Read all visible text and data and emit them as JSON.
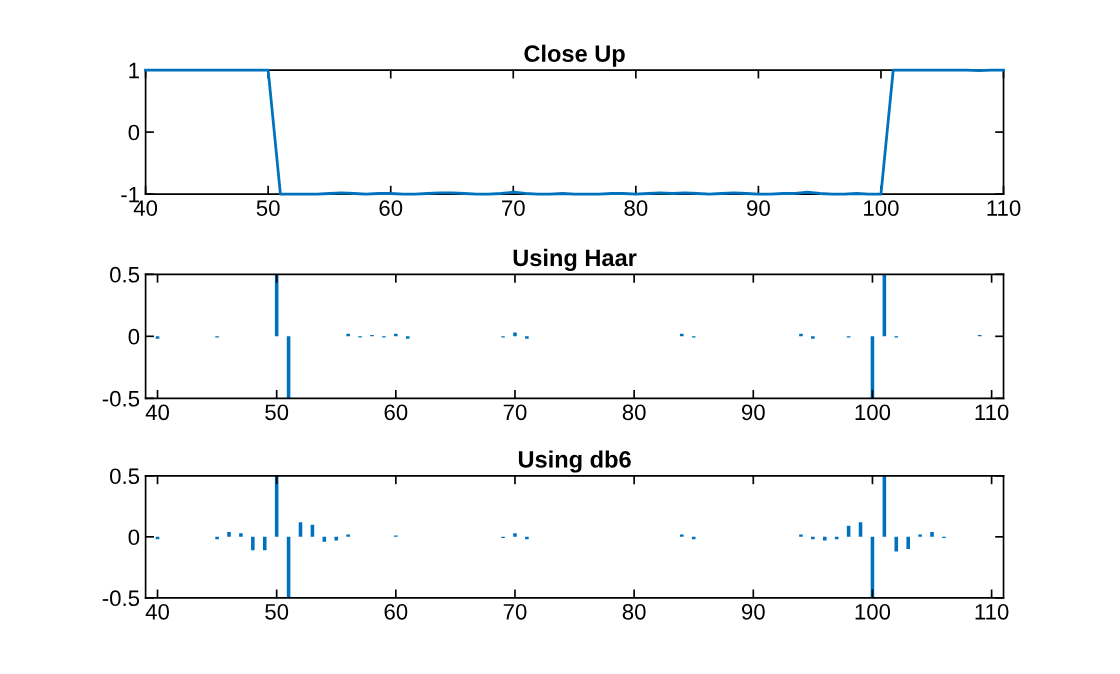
{
  "chart_data": [
    {
      "type": "line",
      "title": "Close Up",
      "x": [
        40,
        41,
        42,
        43,
        44,
        45,
        46,
        47,
        48,
        49,
        50,
        51,
        52,
        53,
        54,
        55,
        56,
        57,
        58,
        59,
        60,
        61,
        62,
        63,
        64,
        65,
        66,
        67,
        68,
        69,
        70,
        71,
        72,
        73,
        74,
        75,
        76,
        77,
        78,
        79,
        80,
        81,
        82,
        83,
        84,
        85,
        86,
        87,
        88,
        89,
        90,
        91,
        92,
        93,
        94,
        95,
        96,
        97,
        98,
        99,
        100,
        101,
        102,
        103,
        104,
        105,
        106,
        107,
        108,
        109,
        110
      ],
      "series": [
        {
          "color": "#0072bd",
          "values": [
            1,
            1,
            1,
            1,
            1,
            1,
            1,
            1,
            1,
            1,
            1,
            -1,
            -1,
            -1,
            -1,
            -0.99,
            -0.98,
            -0.99,
            -1,
            -0.99,
            -0.99,
            -1,
            -1,
            -0.99,
            -0.98,
            -0.98,
            -0.99,
            -1,
            -1,
            -0.99,
            -0.97,
            -0.99,
            -1,
            -1,
            -0.99,
            -1,
            -1,
            -1,
            -0.99,
            -0.99,
            -1,
            -0.99,
            -0.98,
            -0.99,
            -0.98,
            -0.99,
            -1,
            -0.99,
            -0.98,
            -0.99,
            -1,
            -1,
            -0.99,
            -0.99,
            -0.97,
            -0.99,
            -1,
            -1,
            -0.99,
            -1,
            -1,
            1,
            1,
            1,
            1,
            1,
            1,
            1,
            0.99,
            1,
            1
          ]
        }
      ],
      "xlim": [
        40,
        110
      ],
      "ylim": [
        -1,
        1
      ],
      "xticks": [
        40,
        50,
        60,
        70,
        80,
        90,
        100,
        110
      ],
      "yticks": [
        -1,
        0,
        1
      ]
    },
    {
      "type": "bar",
      "title": "Using Haar",
      "x": [
        40,
        41,
        42,
        43,
        44,
        45,
        46,
        47,
        48,
        49,
        50,
        51,
        52,
        53,
        54,
        55,
        56,
        57,
        58,
        59,
        60,
        61,
        62,
        63,
        64,
        65,
        66,
        67,
        68,
        69,
        70,
        71,
        72,
        73,
        74,
        75,
        76,
        77,
        78,
        79,
        80,
        81,
        82,
        83,
        84,
        85,
        86,
        87,
        88,
        89,
        90,
        91,
        92,
        93,
        94,
        95,
        96,
        97,
        98,
        99,
        100,
        101,
        102,
        103,
        104,
        105,
        106,
        107,
        108,
        109,
        110
      ],
      "series": [
        {
          "color": "#0072bd",
          "values": [
            -0.02,
            0,
            0,
            0,
            0,
            -0.01,
            0,
            0,
            0,
            0,
            0.5,
            -0.5,
            0,
            0,
            0,
            0,
            0.02,
            -0.01,
            0.01,
            -0.01,
            0.02,
            -0.02,
            0,
            0,
            0,
            0,
            0,
            0,
            0,
            -0.01,
            0.03,
            -0.02,
            0,
            0,
            0,
            0,
            0,
            0,
            0,
            0,
            0,
            0,
            0,
            0,
            0.02,
            -0.01,
            0,
            0,
            0,
            0,
            0,
            0,
            0,
            0,
            0.02,
            -0.02,
            0,
            0,
            -0.01,
            0,
            -0.5,
            0.5,
            -0.01,
            0,
            0,
            0,
            0,
            0,
            0,
            0.01,
            0
          ]
        }
      ],
      "xlim": [
        39,
        111
      ],
      "ylim": [
        -0.5,
        0.5
      ],
      "xticks": [
        40,
        50,
        60,
        70,
        80,
        90,
        100,
        110
      ],
      "yticks": [
        -0.5,
        0,
        0.5
      ]
    },
    {
      "type": "bar",
      "title": "Using db6",
      "x": [
        40,
        41,
        42,
        43,
        44,
        45,
        46,
        47,
        48,
        49,
        50,
        51,
        52,
        53,
        54,
        55,
        56,
        57,
        58,
        59,
        60,
        61,
        62,
        63,
        64,
        65,
        66,
        67,
        68,
        69,
        70,
        71,
        72,
        73,
        74,
        75,
        76,
        77,
        78,
        79,
        80,
        81,
        82,
        83,
        84,
        85,
        86,
        87,
        88,
        89,
        90,
        91,
        92,
        93,
        94,
        95,
        96,
        97,
        98,
        99,
        100,
        101,
        102,
        103,
        104,
        105,
        106,
        107,
        108,
        109,
        110
      ],
      "series": [
        {
          "color": "#0072bd",
          "values": [
            -0.02,
            0,
            0,
            0,
            0,
            -0.02,
            0.04,
            0.03,
            -0.11,
            -0.11,
            0.5,
            -0.5,
            0.12,
            0.1,
            -0.04,
            -0.03,
            0.02,
            0,
            0,
            0,
            0.01,
            0,
            0,
            0,
            0,
            0,
            0,
            0,
            0,
            -0.01,
            0.03,
            -0.02,
            0,
            0,
            0,
            0,
            0,
            0,
            0,
            0,
            0,
            0,
            0,
            0,
            0.02,
            -0.02,
            0,
            0,
            0,
            0,
            0,
            0,
            0,
            0,
            0.02,
            -0.02,
            -0.03,
            -0.02,
            0.09,
            0.12,
            -0.5,
            0.5,
            -0.12,
            -0.1,
            0.02,
            0.04,
            -0.01,
            0,
            0,
            0,
            0
          ]
        }
      ],
      "xlim": [
        39,
        111
      ],
      "ylim": [
        -0.5,
        0.5
      ],
      "xticks": [
        40,
        50,
        60,
        70,
        80,
        90,
        100,
        110
      ],
      "yticks": [
        -0.5,
        0,
        0.5
      ]
    }
  ]
}
